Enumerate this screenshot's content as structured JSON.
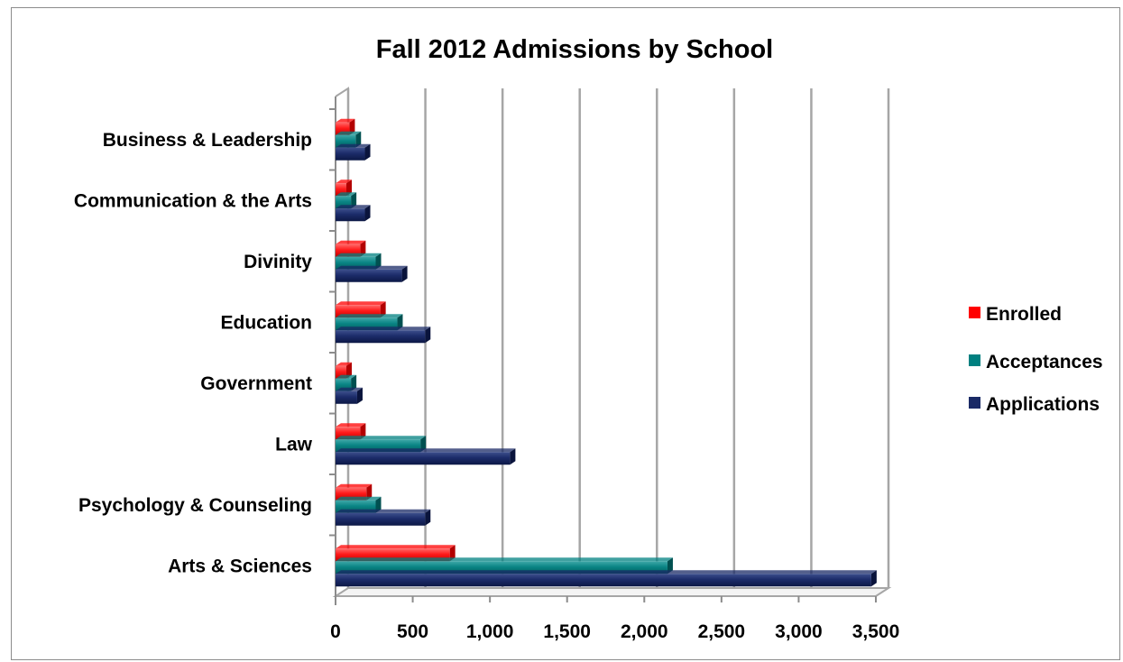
{
  "chart_data": {
    "type": "bar",
    "orientation": "horizontal",
    "title": "Fall 2012 Admissions by School",
    "xlabel": "",
    "ylabel": "",
    "categories": [
      "Business & Leadership",
      "Communication & the Arts",
      "Divinity",
      "Education",
      "Government",
      "Law",
      "Psychology & Counseling",
      "Arts & Sciences"
    ],
    "series": [
      {
        "name": "Enrolled",
        "color": "#ff0000",
        "values": [
          90,
          70,
          160,
          290,
          70,
          160,
          200,
          740
        ]
      },
      {
        "name": "Acceptances",
        "color": "#008080",
        "values": [
          130,
          100,
          260,
          400,
          100,
          550,
          260,
          2150
        ]
      },
      {
        "name": "Applications",
        "color": "#1a2a66",
        "values": [
          190,
          190,
          430,
          580,
          140,
          1130,
          580,
          3470
        ]
      }
    ],
    "x_ticks": [
      "0",
      "500",
      "1,000",
      "1,500",
      "2,000",
      "2,500",
      "3,000",
      "3,500"
    ],
    "xlim": [
      0,
      3500
    ],
    "grid": "vertical",
    "legend_position": "right"
  }
}
